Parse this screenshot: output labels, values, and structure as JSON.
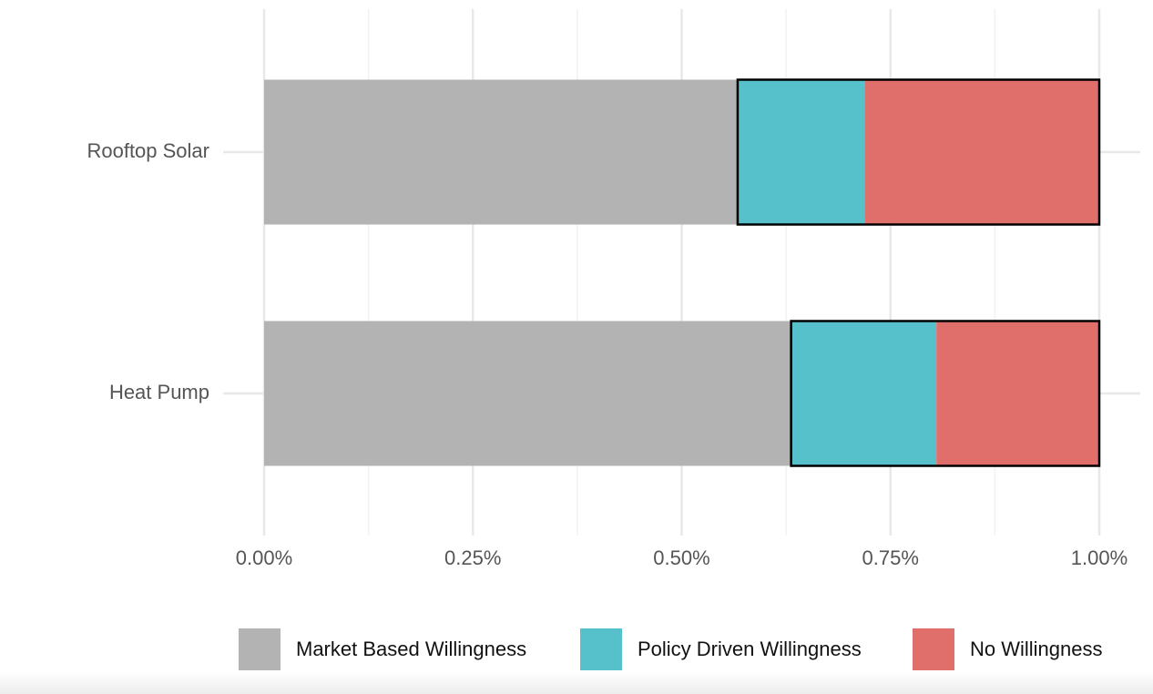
{
  "chart_data": {
    "type": "stacked_barh",
    "categories": [
      "Rooftop Solar",
      "Heat Pump"
    ],
    "series": [
      {
        "name": "Market Based Willingness",
        "color": "#b3b3b3",
        "values": [
          0.567,
          0.631
        ]
      },
      {
        "name": "Policy Driven Willingness",
        "color": "#56c1cb",
        "values": [
          0.152,
          0.174
        ]
      },
      {
        "name": "No Willingness",
        "color": "#e06e6a",
        "values": [
          0.281,
          0.195
        ]
      }
    ],
    "xlim": [
      0,
      1
    ],
    "xticks": [
      {
        "value": 0,
        "label": "0.00%"
      },
      {
        "value": 0.25,
        "label": "0.25%"
      },
      {
        "value": 0.5,
        "label": "0.50%"
      },
      {
        "value": 0.75,
        "label": "0.75%"
      },
      {
        "value": 1,
        "label": "1.00%"
      }
    ],
    "minor_xticks": [
      0.125,
      0.375,
      0.625,
      0.875
    ],
    "grid": true,
    "legend": "bottom"
  }
}
